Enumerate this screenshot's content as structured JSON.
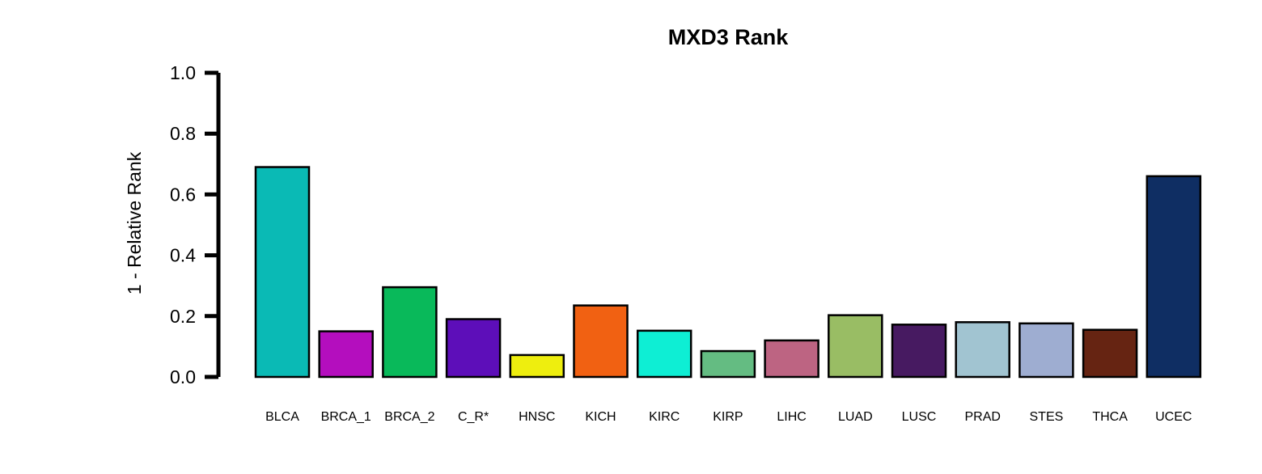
{
  "chart_data": {
    "type": "bar",
    "title": "MXD3 Rank",
    "xlabel": "",
    "ylabel": "1 - Relative Rank",
    "ylim": [
      0,
      1
    ],
    "yticks": [
      "0.0",
      "0.2",
      "0.4",
      "0.6",
      "0.8",
      "1.0"
    ],
    "ytick_values": [
      0,
      0.2,
      0.4,
      0.6,
      0.8,
      1.0
    ],
    "grid": false,
    "legend": "none",
    "categories": [
      "BLCA",
      "BRCA_1",
      "BRCA_2",
      "C_R*",
      "HNSC",
      "KICH",
      "KIRC",
      "KIRP",
      "LIHC",
      "LUAD",
      "LUSC",
      "PRAD",
      "STES",
      "THCA",
      "UCEC"
    ],
    "values": [
      0.69,
      0.15,
      0.295,
      0.19,
      0.072,
      0.235,
      0.152,
      0.085,
      0.12,
      0.203,
      0.172,
      0.18,
      0.176,
      0.155,
      0.66
    ],
    "colors": [
      "#0ABAB5",
      "#B40EBE",
      "#09B95A",
      "#5D0EB9",
      "#EEEE0E",
      "#F16112",
      "#0EEED4",
      "#64BC82",
      "#BD6482",
      "#99BD64",
      "#471A61",
      "#A1C4D1",
      "#9EADD1",
      "#662412",
      "#0F2E63"
    ]
  }
}
